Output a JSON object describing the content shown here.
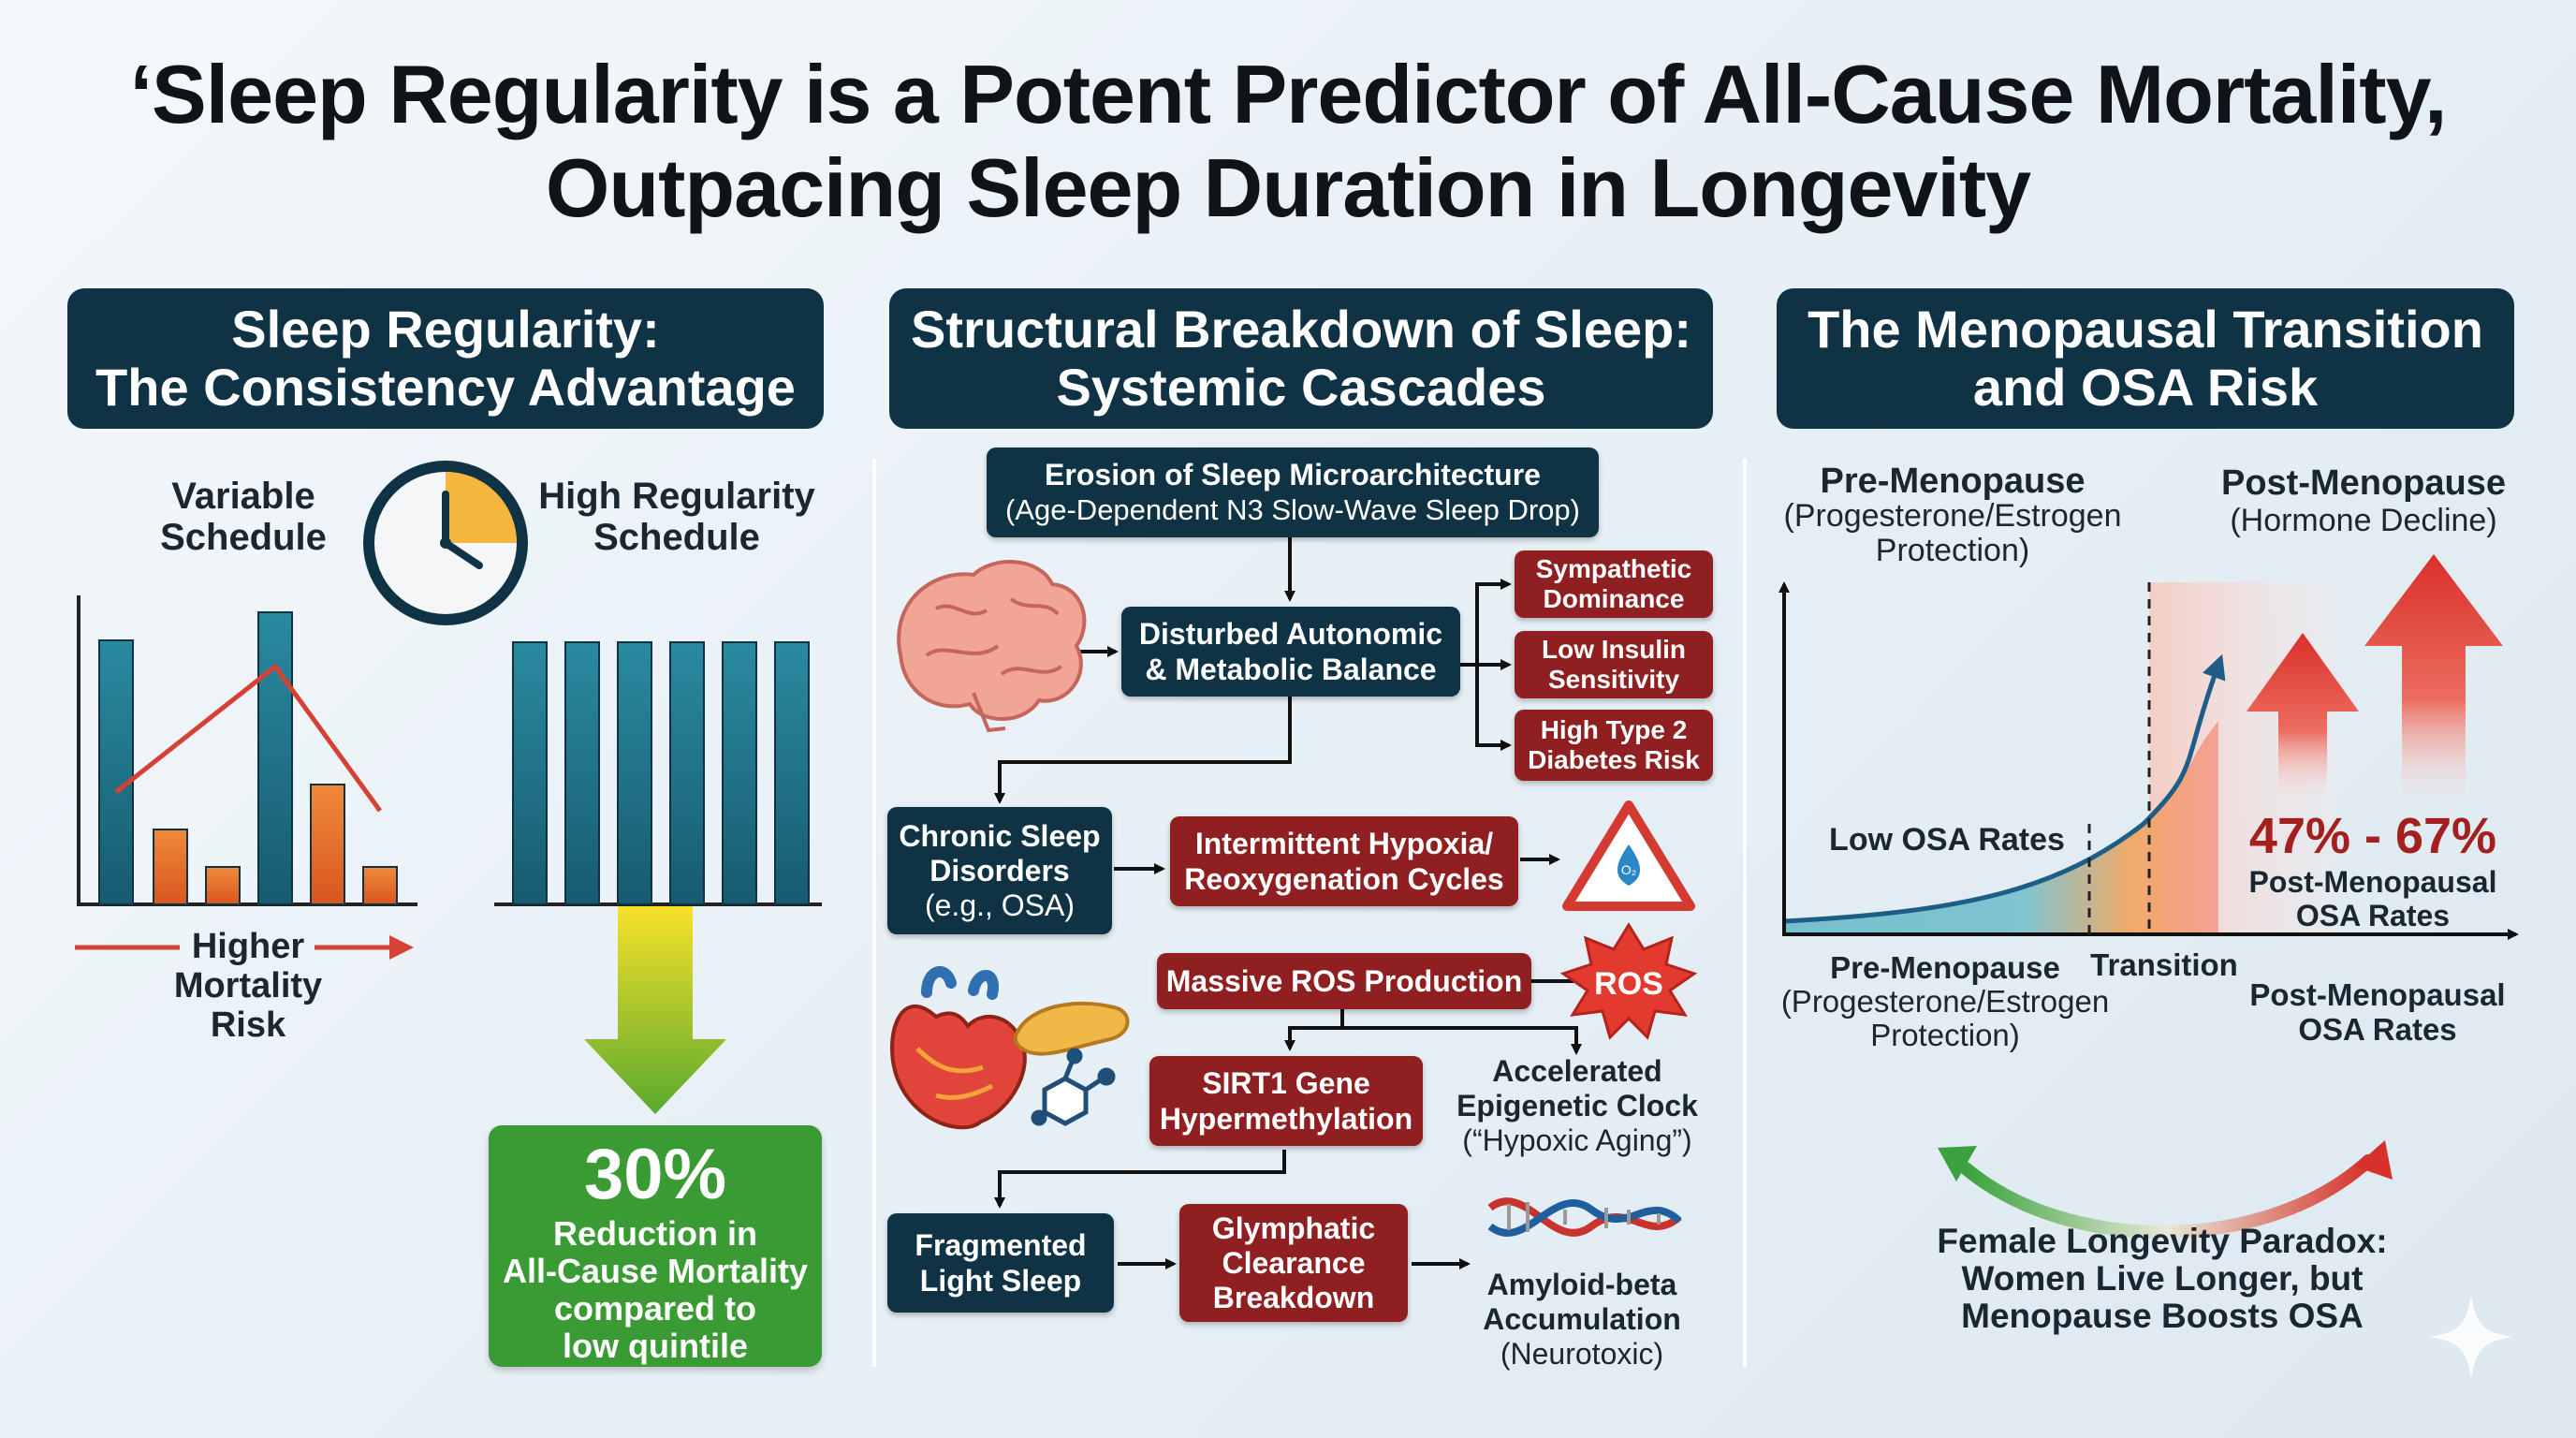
{
  "title": {
    "line1": "‘Sleep Regularity is a Potent Predictor of All-Cause Mortality,",
    "line2": "Outpacing Sleep Duration in Longevity"
  },
  "panel1": {
    "header_line1": "Sleep Regularity:",
    "header_line2": "The Consistency Advantage",
    "variable_label_1": "Variable",
    "variable_label_2": "Schedule",
    "regular_label_1": "High Regularity",
    "regular_label_2": "Schedule",
    "mortality_label_1": "Higher",
    "mortality_label_2": "Mortality Risk",
    "result_pct": "30%",
    "result_line1": "Reduction in",
    "result_line2": "All-Cause Mortality",
    "result_line3": "compared to",
    "result_line4": "low quintile",
    "colors": {
      "teal_bar": "#1d6f86",
      "orange_bar": "#e8742a",
      "green": "#3a9b35",
      "red": "#d64035"
    }
  },
  "panel2": {
    "header_line1": "Structural Breakdown of Sleep:",
    "header_line2": "Systemic Cascades",
    "erosion_line1": "Erosion of Sleep Microarchitecture",
    "erosion_line2": "(Age-Dependent N3 Slow-Wave Sleep Drop)",
    "autonomic_line1": "Disturbed Autonomic",
    "autonomic_line2": "& Metabolic Balance",
    "sympathetic_line1": "Sympathetic",
    "sympathetic_line2": "Dominance",
    "insulin_line1": "Low Insulin",
    "insulin_line2": "Sensitivity",
    "diabetes_line1": "High Type 2",
    "diabetes_line2": "Diabetes Risk",
    "chronic_line1": "Chronic Sleep",
    "chronic_line2": "Disorders",
    "chronic_line3": "(e.g., OSA)",
    "hypoxia_line1": "Intermittent Hypoxia/",
    "hypoxia_line2": "Reoxygenation Cycles",
    "ros_box": "Massive ROS Production",
    "ros_burst": "ROS",
    "warning_text": "O₂",
    "sirt1_line1": "SIRT1 Gene",
    "sirt1_line2": "Hypermethylation",
    "epigenetic_line1": "Accelerated",
    "epigenetic_line2": "Epigenetic Clock",
    "epigenetic_line3": "(“Hypoxic Aging”)",
    "fragmented_line1": "Fragmented",
    "fragmented_line2": "Light Sleep",
    "glymphatic_line1": "Glymphatic",
    "glymphatic_line2": "Clearance",
    "glymphatic_line3": "Breakdown",
    "amyloid_line1": "Amyloid-beta",
    "amyloid_line2": "Accumulation",
    "amyloid_line3": "(Neurotoxic)"
  },
  "panel3": {
    "header_line1": "The Menopausal Transition",
    "header_line2": "and OSA Risk",
    "pre_title": "Pre-Menopause",
    "pre_sub_1": "(Progesterone/Estrogen",
    "pre_sub_2": "Protection)",
    "post_title": "Post-Menopause",
    "post_sub": "(Hormone Decline)",
    "low_osa": "Low OSA Rates",
    "pct_range": "47% - 67%",
    "pct_sub_1": "Post-Menopausal",
    "pct_sub_2": "OSA Rates",
    "axis_pre_title": "Pre-Menopause",
    "axis_pre_sub_1": "(Progesterone/Estrogen",
    "axis_pre_sub_2": "Protection)",
    "axis_transition": "Transition",
    "axis_post_1": "Post-Menopausal",
    "axis_post_2": "OSA Rates",
    "paradox_1": "Female Longevity Paradox:",
    "paradox_2": "Women Live Longer, but",
    "paradox_3": "Menopause Boosts OSA"
  }
}
